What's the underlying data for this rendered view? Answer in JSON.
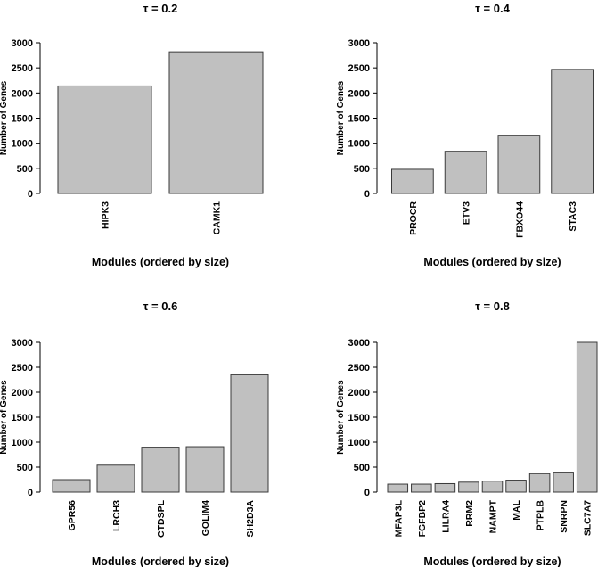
{
  "chart_data": [
    {
      "type": "bar",
      "title": "τ = 0.2",
      "xlabel": "Modules (ordered by size)",
      "ylabel": "Number of Genes",
      "ylim": [
        0,
        3000
      ],
      "yticks": [
        0,
        500,
        1000,
        1500,
        2000,
        2500,
        3000
      ],
      "categories": [
        "HIPK3",
        "CAMK1"
      ],
      "values": [
        2140,
        2820
      ]
    },
    {
      "type": "bar",
      "title": "τ = 0.4",
      "xlabel": "Modules (ordered by size)",
      "ylabel": "Number of Genes",
      "ylim": [
        0,
        3000
      ],
      "yticks": [
        0,
        500,
        1000,
        1500,
        2000,
        2500,
        3000
      ],
      "categories": [
        "PROCR",
        "ETV3",
        "FBXO44",
        "STAC3"
      ],
      "values": [
        480,
        840,
        1160,
        2470
      ]
    },
    {
      "type": "bar",
      "title": "τ = 0.6",
      "xlabel": "Modules (ordered by size)",
      "ylabel": "Number of Genes",
      "ylim": [
        0,
        3000
      ],
      "yticks": [
        0,
        500,
        1000,
        1500,
        2000,
        2500,
        3000
      ],
      "categories": [
        "GPR56",
        "LRCH3",
        "CTDSPL",
        "GOLIM4",
        "SH2D3A"
      ],
      "values": [
        250,
        540,
        900,
        910,
        2350
      ]
    },
    {
      "type": "bar",
      "title": "τ = 0.8",
      "xlabel": "Modules (ordered by size)",
      "ylabel": "Number of Genes",
      "ylim": [
        0,
        3000
      ],
      "yticks": [
        0,
        500,
        1000,
        1500,
        2000,
        2500,
        3000
      ],
      "categories": [
        "MFAP3L",
        "FGFBP2",
        "LILRA4",
        "RRM2",
        "NAMPT",
        "MAL",
        "PTPLB",
        "SNRPN",
        "SLC7A7"
      ],
      "values": [
        160,
        160,
        170,
        200,
        220,
        240,
        370,
        400,
        3000
      ]
    }
  ]
}
